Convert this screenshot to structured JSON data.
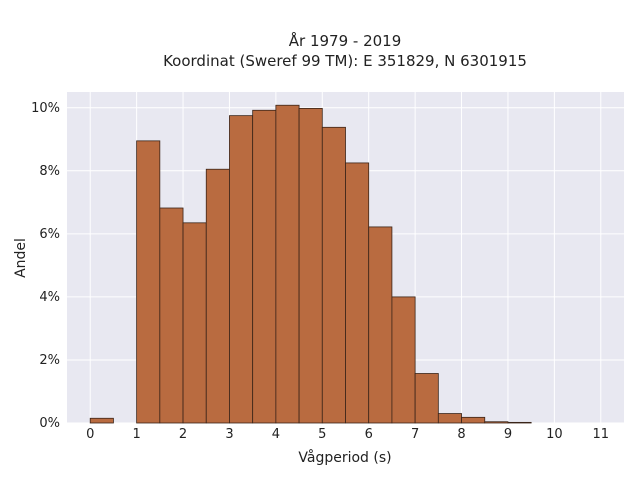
{
  "chart_data": {
    "type": "bar",
    "title": "År 1979 - 2019",
    "subtitle": "Koordinat (Sweref 99 TM): E 351829, N 6301915",
    "xlabel": "Vågperiod (s)",
    "ylabel": "Andel",
    "xlim": [
      -0.5,
      11.5
    ],
    "ylim": [
      0,
      10.5
    ],
    "x_ticks": [
      0,
      1,
      2,
      3,
      4,
      5,
      6,
      7,
      8,
      9,
      10,
      11
    ],
    "y_ticks": [
      0,
      2,
      4,
      6,
      8,
      10
    ],
    "y_tick_labels": [
      "0%",
      "2%",
      "4%",
      "6%",
      "8%",
      "10%"
    ],
    "bin_width": 0.5,
    "bins": [
      {
        "start": 0.0,
        "value": 0.15
      },
      {
        "start": 1.0,
        "value": 8.95
      },
      {
        "start": 1.5,
        "value": 6.82
      },
      {
        "start": 2.0,
        "value": 6.35
      },
      {
        "start": 2.5,
        "value": 8.05
      },
      {
        "start": 3.0,
        "value": 9.75
      },
      {
        "start": 3.5,
        "value": 9.92
      },
      {
        "start": 4.0,
        "value": 10.08
      },
      {
        "start": 4.5,
        "value": 9.98
      },
      {
        "start": 5.0,
        "value": 9.38
      },
      {
        "start": 5.5,
        "value": 8.25
      },
      {
        "start": 6.0,
        "value": 6.22
      },
      {
        "start": 6.5,
        "value": 4.0
      },
      {
        "start": 7.0,
        "value": 1.57
      },
      {
        "start": 7.5,
        "value": 0.3
      },
      {
        "start": 8.0,
        "value": 0.18
      },
      {
        "start": 8.5,
        "value": 0.04
      },
      {
        "start": 9.0,
        "value": 0.02
      }
    ],
    "grid": true,
    "colors": {
      "bar_fill": "#b96b40",
      "bar_edge": "#3a2418",
      "plot_background": "#e8e8f1",
      "grid": "#ffffff"
    }
  }
}
